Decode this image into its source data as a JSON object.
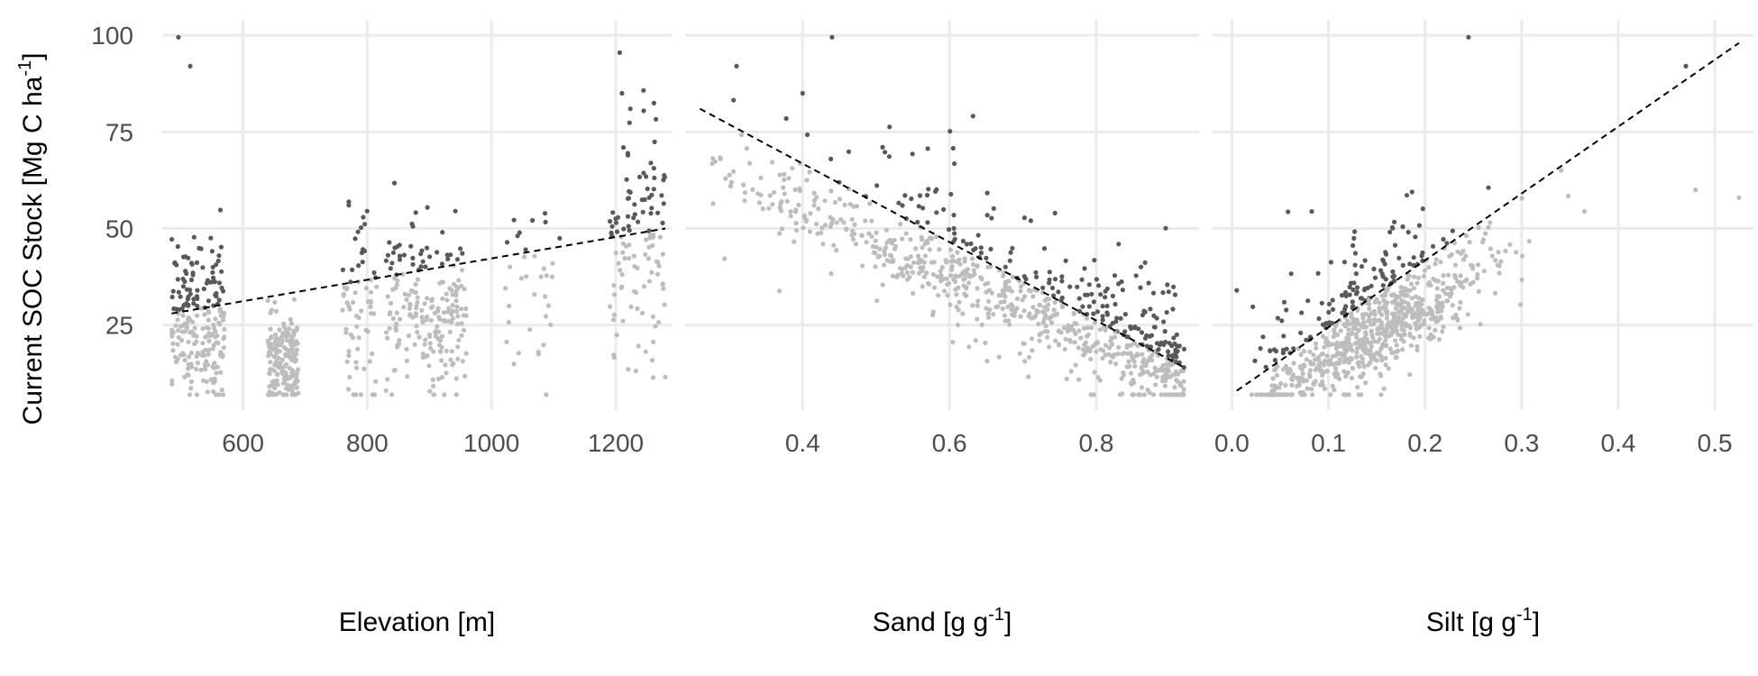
{
  "colors": {
    "background": "#ffffff",
    "grid": "#ebebeb",
    "point_dark": "#595959",
    "point_light": "#bdbdbd",
    "trend": "#000000",
    "tick_text": "#4d4d4d",
    "title_text": "#000000"
  },
  "chart_data": [
    {
      "type": "scatter",
      "xlabel": "Elevation [m]",
      "ylabel": "Current SOC Stock [Mg C ha^-1]",
      "xlim": [
        470,
        1290
      ],
      "ylim": [
        3,
        104
      ],
      "x_ticks": [
        600,
        800,
        1000,
        1200
      ],
      "x_tick_labels": [
        "600",
        "800",
        "1000",
        "1200"
      ],
      "y_ticks": [
        25,
        50,
        75,
        100
      ],
      "y_tick_labels": [
        "25",
        "50",
        "75",
        "100"
      ],
      "grid": true,
      "trend_line": {
        "style": "dashed",
        "x": [
          485,
          1280
        ],
        "y": [
          28,
          50
        ]
      },
      "clusters": [
        {
          "x_range": [
            485,
            570
          ],
          "y_mean": 26,
          "y_sd": 10,
          "count": 220
        },
        {
          "x_range": [
            640,
            690
          ],
          "y_mean": 15,
          "y_sd": 6,
          "count": 170
        },
        {
          "x_range": [
            760,
            815
          ],
          "y_mean": 28,
          "y_sd": 12,
          "count": 70
        },
        {
          "x_range": [
            830,
            960
          ],
          "y_mean": 28,
          "y_sd": 11,
          "count": 210
        },
        {
          "x_range": [
            1020,
            1110
          ],
          "y_mean": 34,
          "y_sd": 12,
          "count": 35
        },
        {
          "x_range": [
            1190,
            1280
          ],
          "y_mean": 45,
          "y_sd": 16,
          "count": 120
        }
      ],
      "highlight_points": [
        {
          "x": 496,
          "y": 99.5
        },
        {
          "x": 515,
          "y": 92
        },
        {
          "x": 1210,
          "y": 85
        }
      ]
    },
    {
      "type": "scatter",
      "xlabel": "Sand [g g^-1]",
      "ylabel": "",
      "xlim": [
        0.24,
        0.94
      ],
      "ylim": [
        3,
        104
      ],
      "x_ticks": [
        0.4,
        0.6,
        0.8
      ],
      "x_tick_labels": [
        "0.4",
        "0.6",
        "0.8"
      ],
      "y_ticks": [
        25,
        50,
        75,
        100
      ],
      "grid": true,
      "trend_line": {
        "style": "dashed",
        "x": [
          0.26,
          0.92
        ],
        "y": [
          81,
          14
        ]
      },
      "relation": {
        "x_range": [
          0.25,
          0.92
        ],
        "mean_at_start": 68,
        "mean_at_end": 12,
        "sd": 11,
        "count": 800
      },
      "highlight_points": [
        {
          "x": 0.44,
          "y": 99.5
        },
        {
          "x": 0.31,
          "y": 92
        },
        {
          "x": 0.4,
          "y": 85
        }
      ]
    },
    {
      "type": "scatter",
      "xlabel": "Silt [g g^-1]",
      "ylabel": "",
      "xlim": [
        -0.02,
        0.54
      ],
      "ylim": [
        3,
        104
      ],
      "x_ticks": [
        0.0,
        0.1,
        0.2,
        0.3,
        0.4,
        0.5
      ],
      "x_tick_labels": [
        "0.0",
        "0.1",
        "0.2",
        "0.3",
        "0.4",
        "0.5"
      ],
      "y_ticks": [
        25,
        50,
        75,
        100
      ],
      "grid": true,
      "trend_line": {
        "style": "dashed",
        "x": [
          0.005,
          0.525
        ],
        "y": [
          8,
          98
        ]
      },
      "relation": {
        "x_range": [
          0.02,
          0.4
        ],
        "x_peak": 0.15,
        "slope": 170,
        "intercept": 2,
        "sd": 11,
        "count": 800
      },
      "highlight_points": [
        {
          "x": 0.245,
          "y": 99.5
        },
        {
          "x": 0.47,
          "y": 92
        },
        {
          "x": 0.525,
          "y": 58
        },
        {
          "x": 0.48,
          "y": 60
        },
        {
          "x": 0.005,
          "y": 34
        }
      ]
    }
  ]
}
